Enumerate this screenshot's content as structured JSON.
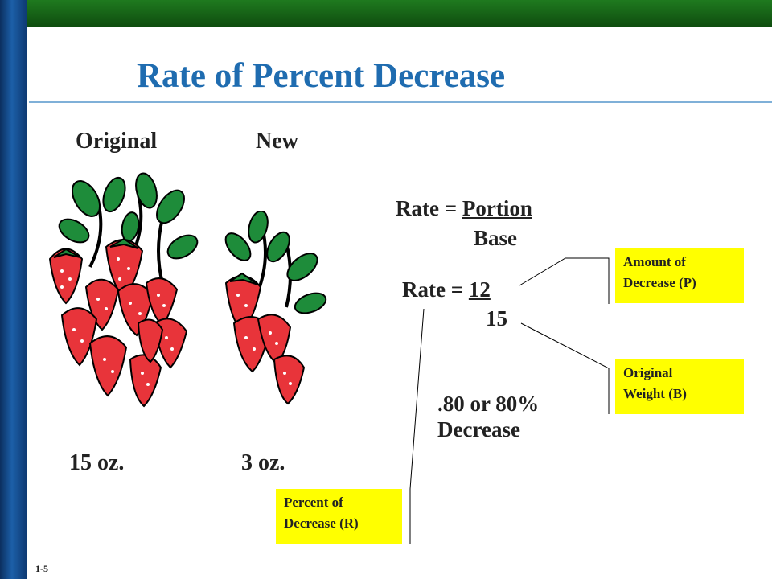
{
  "slide": {
    "title": "Rate of Percent Decrease",
    "footer": "1-5"
  },
  "images": {
    "original_label": "Original",
    "new_label": "New",
    "original_weight": "15 oz.",
    "new_weight": "3 oz."
  },
  "formula": {
    "line1_prefix": "Rate = ",
    "line1_numerator": "Portion",
    "line1_denominator": "Base",
    "line2_prefix": "Rate = ",
    "line2_numerator": "12",
    "line2_denominator": "15",
    "result_line1": ".80 or 80%",
    "result_line2": "Decrease"
  },
  "callouts": {
    "amount_line1": "Amount of",
    "amount_line2": "Decrease (P)",
    "original_line1": "Original",
    "original_line2": "Weight (B)",
    "percent_line1": "Percent of",
    "percent_line2": "Decrease (R)"
  },
  "colors": {
    "title": "#1f6cb0",
    "callout": "#ffff00",
    "strawberry": "#e8343a",
    "leaf": "#1e8c3a"
  }
}
